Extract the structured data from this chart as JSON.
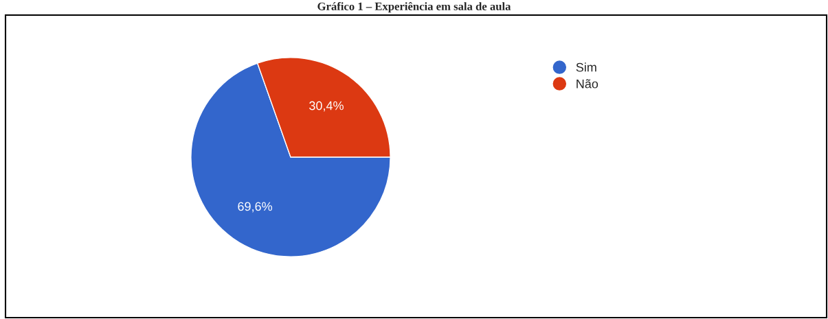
{
  "chart_data": {
    "type": "pie",
    "title": "Gráfico 1 – Experiência em sala de aula",
    "categories": [
      "Sim",
      "Não"
    ],
    "values": [
      69.6,
      30.4
    ],
    "value_labels": [
      "69,6%",
      "30,4%"
    ],
    "colors": [
      "#3366cc",
      "#dc3912"
    ],
    "legend": "top right"
  }
}
